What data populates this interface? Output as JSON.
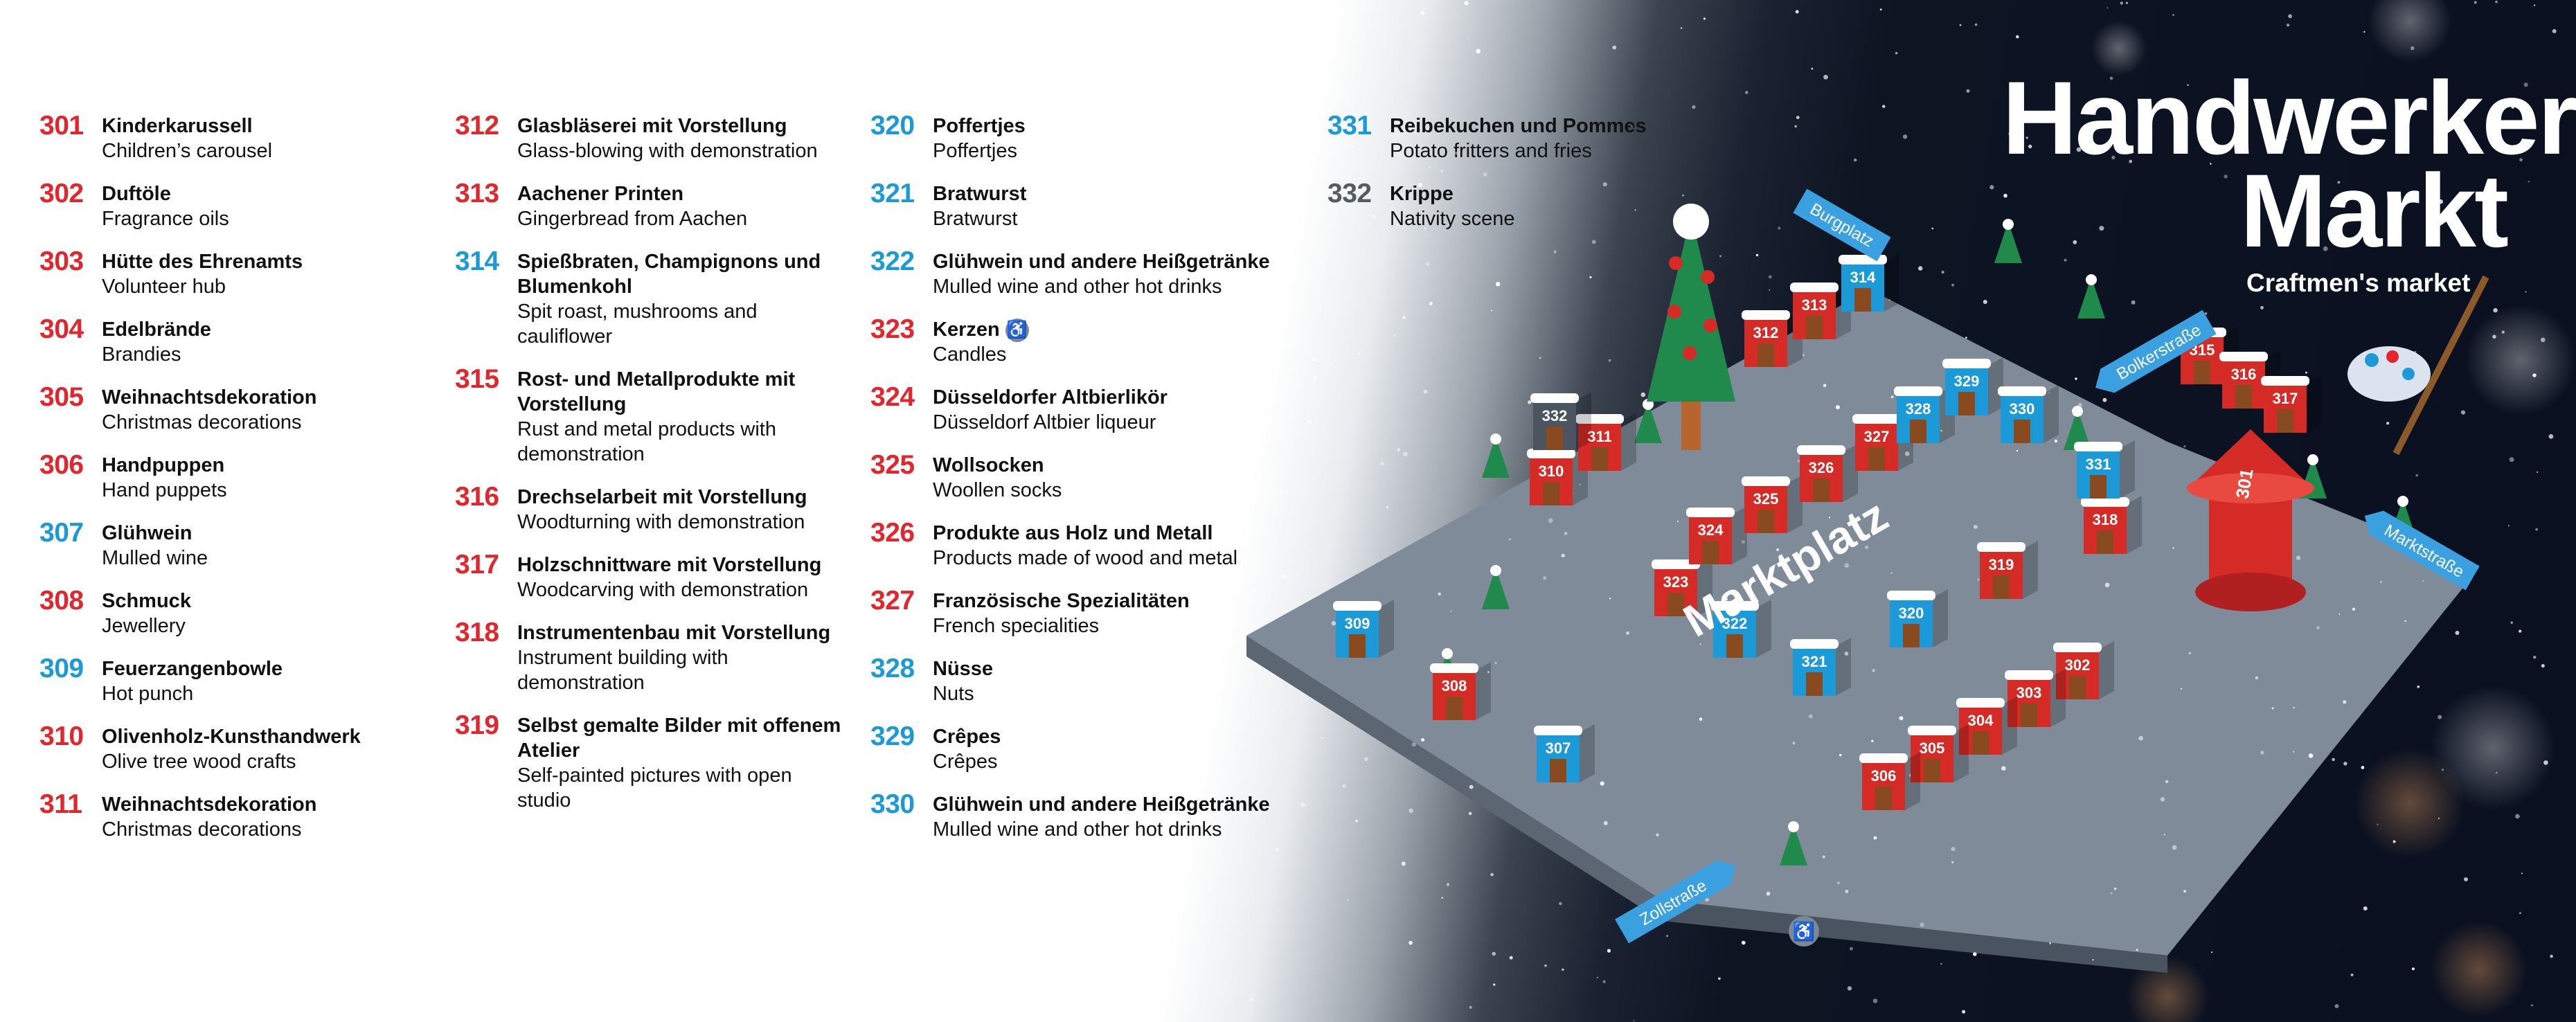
{
  "title": {
    "line1": "Handwerker",
    "line2": "Markt",
    "subtitle": "Craftmen's market"
  },
  "col1": [
    {
      "num": "301",
      "color": "red",
      "de": "Kinderkarussell",
      "en": "Children’s carousel"
    },
    {
      "num": "302",
      "color": "red",
      "de": "Duftöle",
      "en": "Fragrance oils"
    },
    {
      "num": "303",
      "color": "red",
      "de": "Hütte des Ehrenamts",
      "en": "Volunteer hub"
    },
    {
      "num": "304",
      "color": "red",
      "de": "Edelbrände",
      "en": "Brandies"
    },
    {
      "num": "305",
      "color": "red",
      "de": "Weihnachtsdekoration",
      "en": "Christmas decorations"
    },
    {
      "num": "306",
      "color": "red",
      "de": "Handpuppen",
      "en": "Hand puppets"
    },
    {
      "num": "307",
      "color": "blue",
      "de": "Glühwein",
      "en": "Mulled wine"
    },
    {
      "num": "308",
      "color": "red",
      "de": "Schmuck",
      "en": "Jewellery"
    },
    {
      "num": "309",
      "color": "blue",
      "de": "Feuerzangenbowle",
      "en": "Hot punch"
    },
    {
      "num": "310",
      "color": "red",
      "de": "Olivenholz-Kunsthandwerk",
      "en": "Olive tree wood crafts"
    },
    {
      "num": "311",
      "color": "red",
      "de": "Weihnachtsdekoration",
      "en": "Christmas decorations"
    }
  ],
  "col2": [
    {
      "num": "312",
      "color": "red",
      "de": "Glasbläserei mit Vorstellung",
      "en": "Glass-blowing with demonstration"
    },
    {
      "num": "313",
      "color": "red",
      "de": "Aachener Printen",
      "en": "Gingerbread from Aachen"
    },
    {
      "num": "314",
      "color": "blue",
      "de": "Spießbraten, Champignons und Blumenkohl",
      "en": "Spit roast, mushrooms and cauliflower"
    },
    {
      "num": "315",
      "color": "red",
      "de": "Rost- und Metallprodukte mit Vorstellung",
      "en": "Rust and metal products with demonstration"
    },
    {
      "num": "316",
      "color": "red",
      "de": "Drechselarbeit mit Vorstellung",
      "en": "Woodturning with demonstration"
    },
    {
      "num": "317",
      "color": "red",
      "de": "Holzschnittware mit Vorstellung",
      "en": "Woodcarving with demonstration"
    },
    {
      "num": "318",
      "color": "red",
      "de": "Instrumentenbau mit Vorstellung",
      "en": "Instrument building with demonstration"
    },
    {
      "num": "319",
      "color": "red",
      "de": "Selbst gemalte Bilder mit offenem Atelier",
      "en": "Self-painted pictures with open studio"
    }
  ],
  "col3": [
    {
      "num": "320",
      "color": "blue",
      "de": "Poffertjes",
      "en": "Poffertjes"
    },
    {
      "num": "321",
      "color": "blue",
      "de": "Bratwurst",
      "en": "Bratwurst"
    },
    {
      "num": "322",
      "color": "blue",
      "de": "Glühwein und andere Heißgetränke",
      "en": "Mulled wine and other hot drinks"
    },
    {
      "num": "323",
      "color": "red",
      "de": "Kerzen",
      "en": "Candles",
      "wheelchair": true
    },
    {
      "num": "324",
      "color": "red",
      "de": "Düsseldorfer Altbierlikör",
      "en": "Düsseldorf Altbier liqueur"
    },
    {
      "num": "325",
      "color": "red",
      "de": "Wollsocken",
      "en": "Woollen socks"
    },
    {
      "num": "326",
      "color": "red",
      "de": "Produkte aus Holz und Metall",
      "en": "Products made of wood and metal"
    },
    {
      "num": "327",
      "color": "red",
      "de": "Französische Spezialitäten",
      "en": "French specialities"
    },
    {
      "num": "328",
      "color": "blue",
      "de": "Nüsse",
      "en": "Nuts"
    },
    {
      "num": "329",
      "color": "blue",
      "de": "Crêpes",
      "en": "Crêpes"
    },
    {
      "num": "330",
      "color": "blue",
      "de": "Glühwein und andere Heißgetränke",
      "en": "Mulled wine and other hot drinks"
    }
  ],
  "col4": [
    {
      "num": "331",
      "color": "blue",
      "de": "Reibekuchen und Pommes",
      "en": "Potato fritters and fries"
    },
    {
      "num": "332",
      "color": "grey",
      "de": "Krippe",
      "en": "Nativity scene"
    }
  ],
  "map": {
    "square_label": "Marktplatz",
    "streets": [
      "Burgplatz",
      "Bolkerstraße",
      "Marktstraße",
      "Zollstraße"
    ],
    "colors": {
      "red_stall": "#d52b26",
      "blue_stall": "#1b9ad7",
      "grey_stall": "#4b5560",
      "ground": "#7f8b98",
      "street_sign": "#3aa0e0"
    },
    "stalls": [
      {
        "num": "301",
        "color": "red"
      },
      {
        "num": "302",
        "color": "red"
      },
      {
        "num": "303",
        "color": "red"
      },
      {
        "num": "304",
        "color": "red"
      },
      {
        "num": "305",
        "color": "red"
      },
      {
        "num": "306",
        "color": "red"
      },
      {
        "num": "307",
        "color": "blue"
      },
      {
        "num": "308",
        "color": "red"
      },
      {
        "num": "309",
        "color": "blue"
      },
      {
        "num": "310",
        "color": "red"
      },
      {
        "num": "311",
        "color": "red"
      },
      {
        "num": "312",
        "color": "red"
      },
      {
        "num": "313",
        "color": "red"
      },
      {
        "num": "314",
        "color": "blue"
      },
      {
        "num": "315",
        "color": "red"
      },
      {
        "num": "316",
        "color": "red"
      },
      {
        "num": "317",
        "color": "red"
      },
      {
        "num": "318",
        "color": "red"
      },
      {
        "num": "319",
        "color": "red"
      },
      {
        "num": "320",
        "color": "blue"
      },
      {
        "num": "321",
        "color": "blue"
      },
      {
        "num": "322",
        "color": "blue"
      },
      {
        "num": "323",
        "color": "red"
      },
      {
        "num": "324",
        "color": "red"
      },
      {
        "num": "325",
        "color": "red"
      },
      {
        "num": "326",
        "color": "red"
      },
      {
        "num": "327",
        "color": "red"
      },
      {
        "num": "328",
        "color": "blue"
      },
      {
        "num": "329",
        "color": "blue"
      },
      {
        "num": "330",
        "color": "blue"
      },
      {
        "num": "331",
        "color": "blue"
      },
      {
        "num": "332",
        "color": "grey"
      }
    ]
  }
}
